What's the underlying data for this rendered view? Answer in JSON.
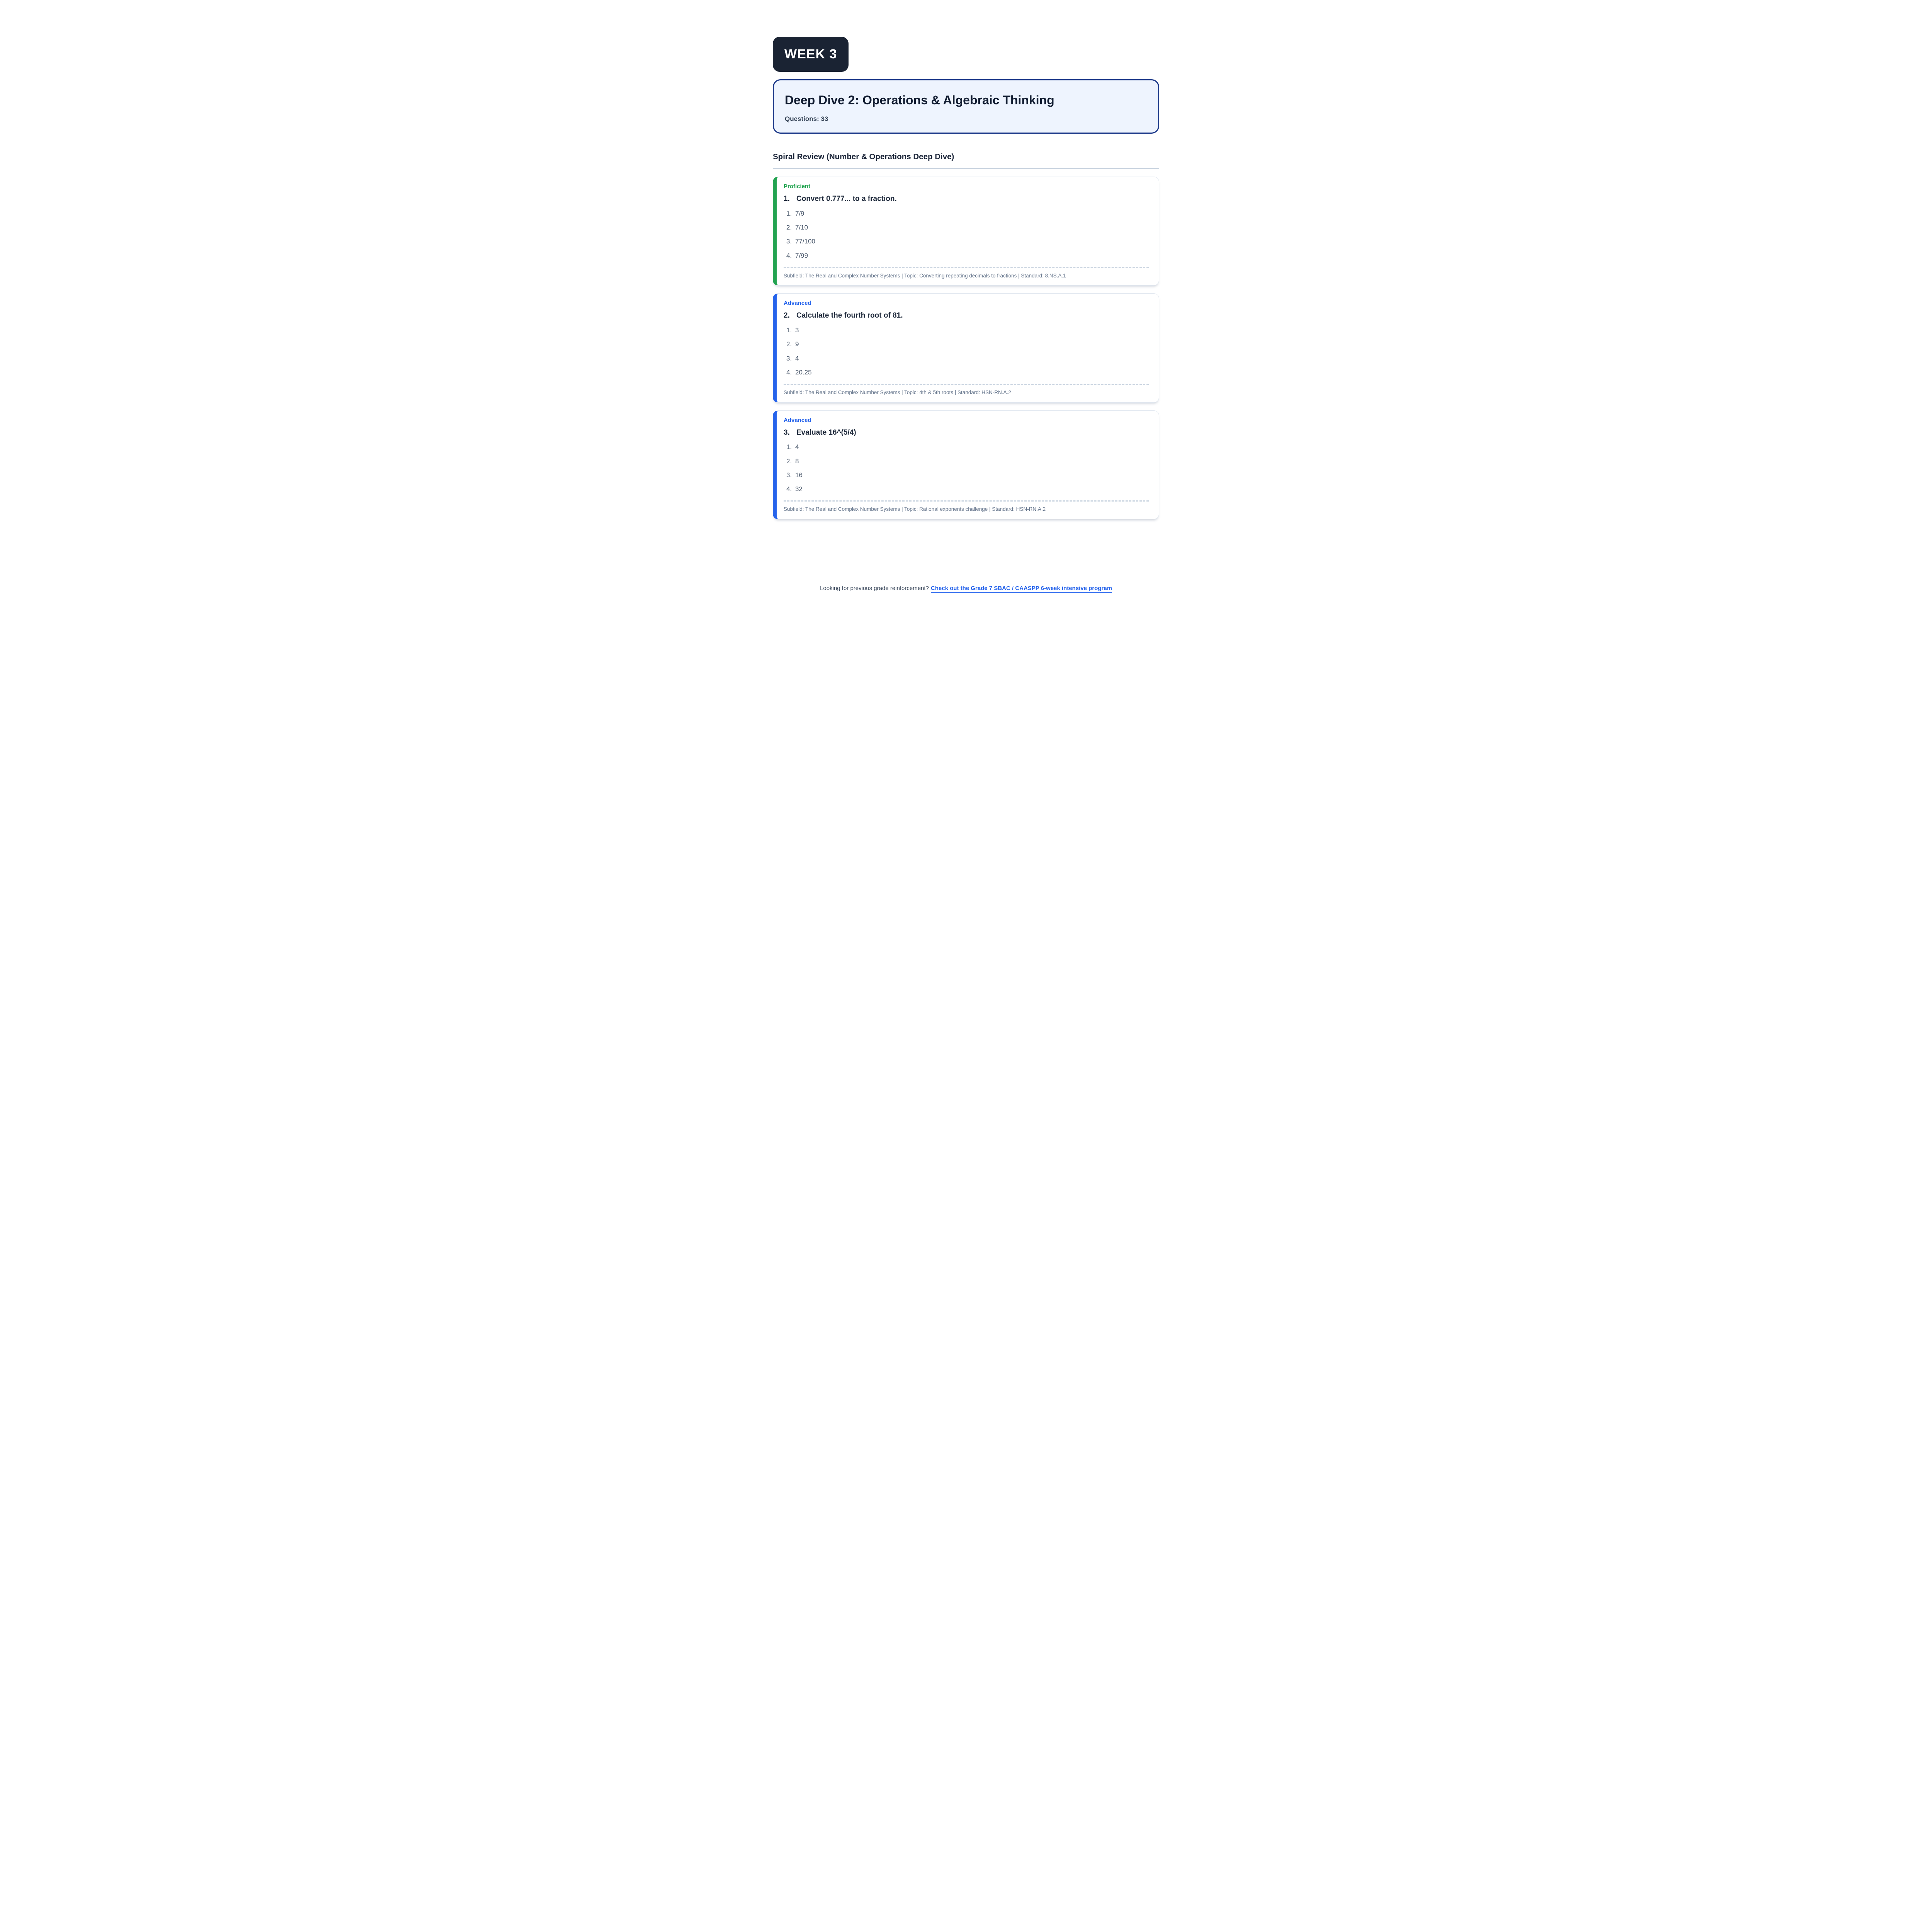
{
  "colors": {
    "badge_bg": "#1a2333",
    "title_card_bg": "#eef4fe",
    "title_card_border": "#1e3a8a",
    "accent_green": "#22a350",
    "accent_blue": "#2563eb",
    "difficulty_green": "#1fa24d",
    "difficulty_blue": "#2563eb",
    "question_text": "#1e293b",
    "option_text": "#475569",
    "meta_text": "#64748b",
    "divider": "#cbd5e1",
    "link": "#2563eb"
  },
  "badge": {
    "label": "WEEK 3"
  },
  "header": {
    "title": "Deep Dive 2: Operations & Algebraic Thinking",
    "questions_label": "Questions: 33"
  },
  "section": {
    "heading": "Spiral Review (Number & Operations Deep Dive)"
  },
  "questions": [
    {
      "difficulty": "Proficient",
      "number": "1.",
      "text": "Convert 0.777... to a fraction.",
      "options": [
        {
          "n": "1.",
          "v": "7/9"
        },
        {
          "n": "2.",
          "v": "7/10"
        },
        {
          "n": "3.",
          "v": "77/100"
        },
        {
          "n": "4.",
          "v": "7/99"
        }
      ],
      "meta": "Subfield: The Real and Complex Number Systems | Topic: Converting repeating decimals to fractions | Standard: 8.NS.A.1"
    },
    {
      "difficulty": "Advanced",
      "number": "2.",
      "text": "Calculate the fourth root of 81.",
      "options": [
        {
          "n": "1.",
          "v": "3"
        },
        {
          "n": "2.",
          "v": "9"
        },
        {
          "n": "3.",
          "v": "4"
        },
        {
          "n": "4.",
          "v": "20.25"
        }
      ],
      "meta": "Subfield: The Real and Complex Number Systems | Topic: 4th & 5th roots | Standard: HSN-RN.A.2"
    },
    {
      "difficulty": "Advanced",
      "number": "3.",
      "text": "Evaluate 16^(5/4)",
      "options": [
        {
          "n": "1.",
          "v": "4"
        },
        {
          "n": "2.",
          "v": "8"
        },
        {
          "n": "3.",
          "v": "16"
        },
        {
          "n": "4.",
          "v": "32"
        }
      ],
      "meta": "Subfield: The Real and Complex Number Systems | Topic: Rational exponents challenge | Standard: HSN-RN.A.2"
    }
  ],
  "footer": {
    "prompt": "Looking for previous grade reinforcement?",
    "link_label": "Check out the Grade 7 SBAC / CAASPP 6-week intensive program"
  }
}
